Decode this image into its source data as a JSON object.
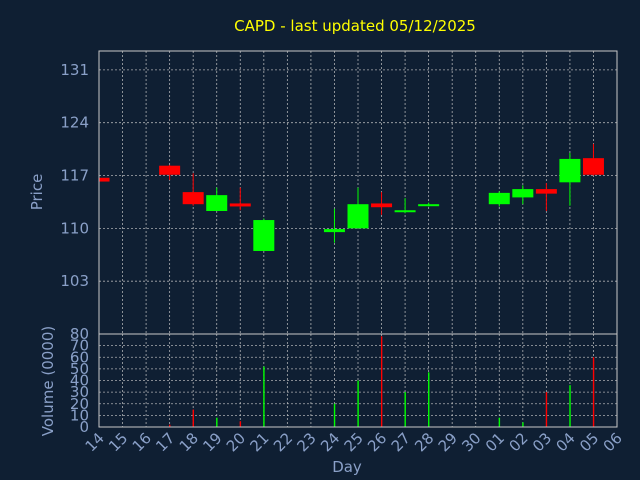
{
  "chart_data": {
    "type": "candlestick",
    "title": "CAPD - last updated 05/12/2025",
    "xlabel": "Day",
    "x_ticks": [
      "14",
      "15",
      "16",
      "17",
      "18",
      "19",
      "20",
      "21",
      "22",
      "23",
      "24",
      "25",
      "26",
      "27",
      "28",
      "29",
      "30",
      "01",
      "02",
      "03",
      "04",
      "05",
      "06"
    ],
    "price": {
      "ylabel": "Price",
      "ylim": [
        96,
        133.5
      ],
      "yticks": [
        103,
        110,
        117,
        124,
        131
      ],
      "candles": [
        {
          "day": "14",
          "open": 116.7,
          "close": 116.2,
          "high": 116.7,
          "low": 116.2
        },
        {
          "day": "17",
          "open": 118.3,
          "close": 117.1,
          "high": 118.4,
          "low": 116.4
        },
        {
          "day": "18",
          "open": 114.8,
          "close": 113.2,
          "high": 117.3,
          "low": 113.0
        },
        {
          "day": "19",
          "open": 112.3,
          "close": 114.4,
          "high": 115.4,
          "low": 112.3
        },
        {
          "day": "20",
          "open": 113.3,
          "close": 112.9,
          "high": 115.4,
          "low": 112.4
        },
        {
          "day": "21",
          "open": 107.0,
          "close": 111.1,
          "high": 111.3,
          "low": 107.0
        },
        {
          "day": "24",
          "open": 109.5,
          "close": 109.9,
          "high": 112.6,
          "low": 108.1
        },
        {
          "day": "25",
          "open": 110.0,
          "close": 113.2,
          "high": 115.4,
          "low": 110.0
        },
        {
          "day": "26",
          "open": 113.3,
          "close": 112.8,
          "high": 114.8,
          "low": 111.8
        },
        {
          "day": "27",
          "open": 112.2,
          "close": 112.4,
          "high": 114.0,
          "low": 112.0
        },
        {
          "day": "28",
          "open": 113.0,
          "close": 113.2,
          "high": 113.4,
          "low": 112.9
        },
        {
          "day": "01",
          "open": 113.2,
          "close": 114.7,
          "high": 114.9,
          "low": 112.9
        },
        {
          "day": "02",
          "open": 114.1,
          "close": 115.2,
          "high": 115.7,
          "low": 113.2
        },
        {
          "day": "03",
          "open": 115.2,
          "close": 114.6,
          "high": 116.0,
          "low": 112.3
        },
        {
          "day": "04",
          "open": 116.1,
          "close": 119.2,
          "high": 120.0,
          "low": 113.0
        },
        {
          "day": "05",
          "open": 119.3,
          "close": 117.1,
          "high": 121.2,
          "low": 117.0
        }
      ],
      "up_color": "#00ff00",
      "down_color": "#ff0000"
    },
    "volume": {
      "ylabel": "Volume (0000)",
      "ylim": [
        0,
        80
      ],
      "yticks": [
        0,
        10,
        20,
        30,
        40,
        50,
        60,
        70,
        80
      ],
      "bars": [
        {
          "day": "17",
          "value": 2,
          "color": "#ff0000"
        },
        {
          "day": "18",
          "value": 15,
          "color": "#ff0000"
        },
        {
          "day": "19",
          "value": 8,
          "color": "#00ff00"
        },
        {
          "day": "20",
          "value": 5,
          "color": "#ff0000"
        },
        {
          "day": "21",
          "value": 52,
          "color": "#00ff00"
        },
        {
          "day": "24",
          "value": 20,
          "color": "#00ff00"
        },
        {
          "day": "25",
          "value": 40,
          "color": "#00ff00"
        },
        {
          "day": "26",
          "value": 78,
          "color": "#ff0000"
        },
        {
          "day": "27",
          "value": 30,
          "color": "#00ff00"
        },
        {
          "day": "28",
          "value": 47,
          "color": "#00ff00"
        },
        {
          "day": "01",
          "value": 8,
          "color": "#00ff00"
        },
        {
          "day": "02",
          "value": 4,
          "color": "#00ff00"
        },
        {
          "day": "03",
          "value": 30,
          "color": "#ff0000"
        },
        {
          "day": "04",
          "value": 36,
          "color": "#00ff00"
        },
        {
          "day": "05",
          "value": 60,
          "color": "#ff0000"
        }
      ]
    },
    "grid": true,
    "colors": {
      "background": "#0f1f33",
      "title": "#ffff00",
      "text": "#8aa0c8",
      "grid": "#c8c8c8"
    }
  }
}
